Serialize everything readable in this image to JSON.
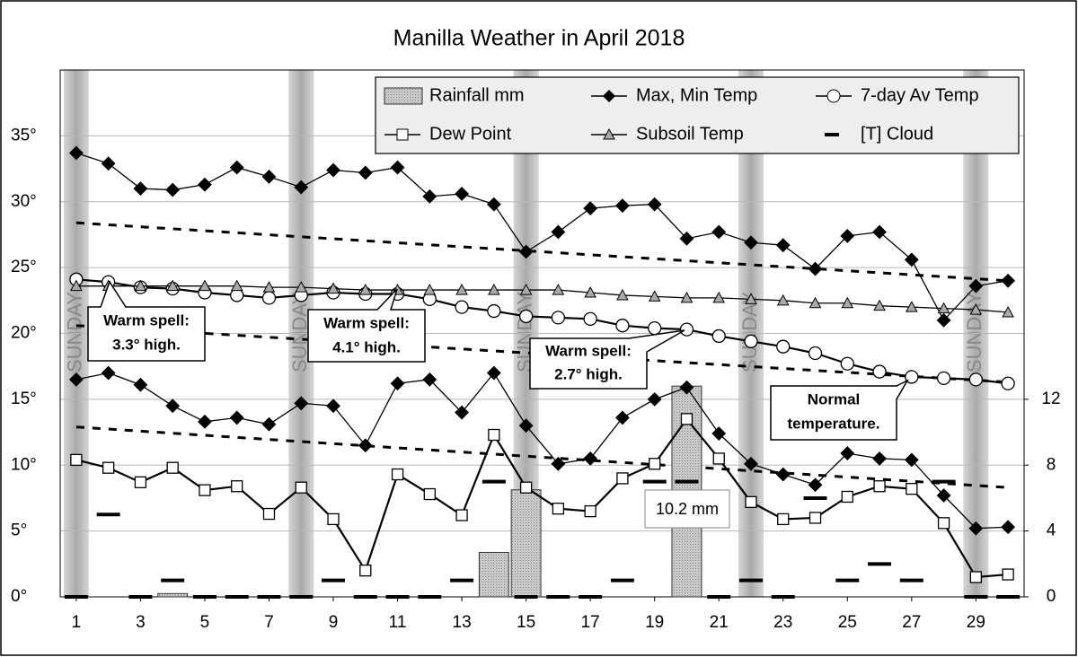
{
  "chart_data": {
    "type": "line",
    "title": "Manilla Weather in April 2018",
    "x": [
      1,
      2,
      3,
      4,
      5,
      6,
      7,
      8,
      9,
      10,
      11,
      12,
      13,
      14,
      15,
      16,
      17,
      18,
      19,
      20,
      21,
      22,
      23,
      24,
      25,
      26,
      27,
      28,
      29,
      30
    ],
    "xlim": [
      0.5,
      30.5
    ],
    "xticks": [
      1,
      3,
      5,
      7,
      9,
      11,
      13,
      15,
      17,
      19,
      21,
      23,
      25,
      27,
      29
    ],
    "ylim": [
      0,
      40
    ],
    "yticks": [
      {
        "value": 0,
        "label": "0°"
      },
      {
        "value": 5,
        "label": "5°"
      },
      {
        "value": 10,
        "label": "10°"
      },
      {
        "value": 15,
        "label": "15°"
      },
      {
        "value": 20,
        "label": "20°"
      },
      {
        "value": 25,
        "label": "25°"
      },
      {
        "value": 30,
        "label": "30°"
      },
      {
        "value": 35,
        "label": "35°"
      }
    ],
    "y2lim": [
      0,
      32
    ],
    "y2ticks": [
      0,
      4,
      8,
      12
    ],
    "grid": true,
    "legend": "top-right",
    "series": [
      {
        "name": "Rainfall mm",
        "type": "bar",
        "axis": "y2",
        "color": "#bdbdbd",
        "values": [
          0,
          0,
          0,
          0.2,
          0,
          0,
          0,
          0,
          0,
          0,
          0,
          0,
          0,
          2.7,
          6.5,
          0,
          0,
          0,
          0,
          12.8,
          0,
          0,
          0,
          0,
          0,
          0,
          0,
          0,
          0,
          0
        ]
      },
      {
        "name": "Max, Min Temp",
        "type": "line",
        "marker": "diamond",
        "color": "#000000",
        "values": [
          33.7,
          32.9,
          31.0,
          30.9,
          31.3,
          32.6,
          31.9,
          31.1,
          32.4,
          32.2,
          32.6,
          30.4,
          30.6,
          29.8,
          26.2,
          27.7,
          29.5,
          29.7,
          29.8,
          27.2,
          27.7,
          26.9,
          26.7,
          24.9,
          27.4,
          27.7,
          25.6,
          21.0,
          23.6,
          24.0
        ],
        "min_values": [
          16.5,
          17.0,
          16.1,
          14.5,
          13.3,
          13.6,
          13.1,
          14.7,
          14.5,
          11.5,
          16.2,
          16.5,
          14.0,
          17.0,
          13.0,
          10.1,
          10.5,
          13.6,
          15.0,
          15.9,
          12.4,
          10.1,
          9.3,
          8.5,
          10.9,
          10.5,
          10.4,
          7.7,
          5.2,
          5.3
        ]
      },
      {
        "name": "7-day Av Temp",
        "type": "line",
        "marker": "circle",
        "color": "#000000",
        "values": [
          24.1,
          23.9,
          23.5,
          23.4,
          23.1,
          22.9,
          22.7,
          22.9,
          23.1,
          23.0,
          23.0,
          22.6,
          22.0,
          21.7,
          21.3,
          21.2,
          21.1,
          20.6,
          20.4,
          20.3,
          19.8,
          19.4,
          19.0,
          18.5,
          17.7,
          17.1,
          16.7,
          16.6,
          16.5,
          16.2
        ]
      },
      {
        "name": "Dew Point",
        "type": "line",
        "marker": "square",
        "color": "#000000",
        "values": [
          10.4,
          9.8,
          8.7,
          9.8,
          8.1,
          8.4,
          6.3,
          8.3,
          5.9,
          2.0,
          9.3,
          7.8,
          6.2,
          12.3,
          8.3,
          6.7,
          6.5,
          9.0,
          10.1,
          13.5,
          10.5,
          7.2,
          5.9,
          6.0,
          7.6,
          8.4,
          8.2,
          5.6,
          1.5,
          1.7
        ]
      },
      {
        "name": "Subsoil Temp",
        "type": "line",
        "marker": "triangle",
        "color": "#000000",
        "values": [
          23.6,
          23.6,
          23.6,
          23.6,
          23.6,
          23.6,
          23.5,
          23.5,
          23.4,
          23.3,
          23.3,
          23.3,
          23.3,
          23.3,
          23.3,
          23.3,
          23.1,
          22.9,
          22.8,
          22.7,
          22.7,
          22.6,
          22.5,
          22.3,
          22.3,
          22.1,
          22.0,
          21.9,
          21.8,
          21.6
        ]
      },
      {
        "name": "[T] Cloud",
        "type": "dash",
        "axis": "y2",
        "color": "#000000",
        "values": [
          0,
          5,
          0,
          1,
          0,
          0,
          0,
          0,
          1,
          0,
          0,
          0,
          1,
          7,
          0,
          0,
          0,
          1,
          7,
          7,
          0,
          1,
          0,
          6,
          1,
          2,
          1,
          7,
          0,
          0
        ]
      }
    ],
    "reference_lines": [
      {
        "x": [
          1,
          30
        ],
        "values": [
          28.4,
          24.0
        ]
      },
      {
        "x": [
          1,
          30
        ],
        "values": [
          20.6,
          16.3
        ]
      },
      {
        "x": [
          1,
          30
        ],
        "values": [
          12.9,
          8.3
        ]
      }
    ],
    "sundays": [
      1,
      8,
      15,
      22,
      29
    ],
    "sunday_label": "SUNDAY",
    "annotations": [
      {
        "lines": [
          "Warm spell:",
          "3.3° high."
        ]
      },
      {
        "lines": [
          "Warm spell:",
          "4.1° high."
        ]
      },
      {
        "lines": [
          "Warm spell:",
          "2.7° high."
        ]
      },
      {
        "lines": [
          "Normal",
          "temperature."
        ]
      },
      {
        "lines": [
          "10.2 mm"
        ]
      }
    ]
  }
}
